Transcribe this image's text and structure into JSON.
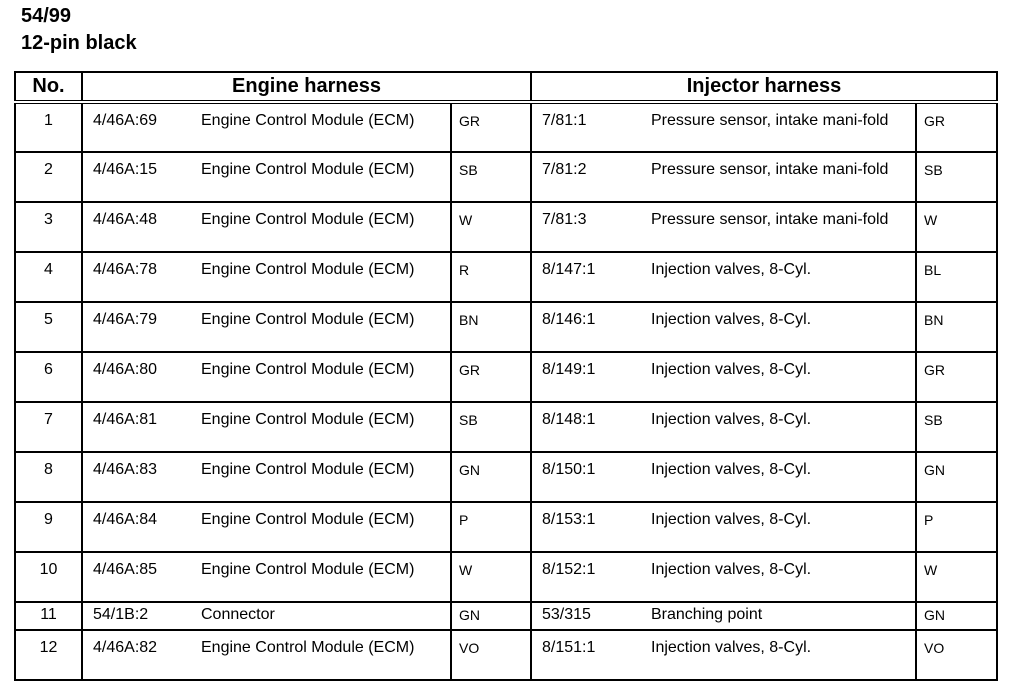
{
  "title": {
    "connector": "54/99",
    "description": "12-pin black"
  },
  "table": {
    "headers": {
      "no": "No.",
      "engine": "Engine harness",
      "injector": "Injector harness"
    },
    "rows": [
      {
        "no": "1",
        "e_code": "4/46A:69",
        "e_desc": "Engine Control Module (ECM)",
        "e_color": "GR",
        "i_code": "7/81:1",
        "i_desc": "Pressure sensor, intake mani-fold",
        "i_color": "GR"
      },
      {
        "no": "2",
        "e_code": "4/46A:15",
        "e_desc": "Engine Control Module (ECM)",
        "e_color": "SB",
        "i_code": "7/81:2",
        "i_desc": "Pressure sensor, intake mani-fold",
        "i_color": "SB"
      },
      {
        "no": "3",
        "e_code": "4/46A:48",
        "e_desc": "Engine Control Module (ECM)",
        "e_color": "W",
        "i_code": "7/81:3",
        "i_desc": "Pressure sensor, intake mani-fold",
        "i_color": "W"
      },
      {
        "no": "4",
        "e_code": "4/46A:78",
        "e_desc": "Engine Control Module (ECM)",
        "e_color": "R",
        "i_code": "8/147:1",
        "i_desc": "Injection valves, 8-Cyl.",
        "i_color": "BL"
      },
      {
        "no": "5",
        "e_code": "4/46A:79",
        "e_desc": "Engine Control Module (ECM)",
        "e_color": "BN",
        "i_code": "8/146:1",
        "i_desc": "Injection valves, 8-Cyl.",
        "i_color": "BN"
      },
      {
        "no": "6",
        "e_code": "4/46A:80",
        "e_desc": "Engine Control Module (ECM)",
        "e_color": "GR",
        "i_code": "8/149:1",
        "i_desc": "Injection valves, 8-Cyl.",
        "i_color": "GR"
      },
      {
        "no": "7",
        "e_code": "4/46A:81",
        "e_desc": "Engine Control Module (ECM)",
        "e_color": "SB",
        "i_code": "8/148:1",
        "i_desc": "Injection valves, 8-Cyl.",
        "i_color": "SB"
      },
      {
        "no": "8",
        "e_code": "4/46A:83",
        "e_desc": "Engine Control Module (ECM)",
        "e_color": "GN",
        "i_code": "8/150:1",
        "i_desc": "Injection valves, 8-Cyl.",
        "i_color": "GN"
      },
      {
        "no": "9",
        "e_code": "4/46A:84",
        "e_desc": "Engine Control Module (ECM)",
        "e_color": "P",
        "i_code": "8/153:1",
        "i_desc": "Injection valves, 8-Cyl.",
        "i_color": "P"
      },
      {
        "no": "10",
        "e_code": "4/46A:85",
        "e_desc": "Engine Control Module (ECM)",
        "e_color": "W",
        "i_code": "8/152:1",
        "i_desc": "Injection valves, 8-Cyl.",
        "i_color": "W"
      },
      {
        "no": "11",
        "e_code": "54/1B:2",
        "e_desc": "Connector",
        "e_color": "GN",
        "i_code": "53/315",
        "i_desc": "Branching point",
        "i_color": "GN"
      },
      {
        "no": "12",
        "e_code": "4/46A:82",
        "e_desc": "Engine Control Module (ECM)",
        "e_color": "VO",
        "i_code": "8/151:1",
        "i_desc": "Injection valves, 8-Cyl.",
        "i_color": "VO"
      }
    ]
  }
}
